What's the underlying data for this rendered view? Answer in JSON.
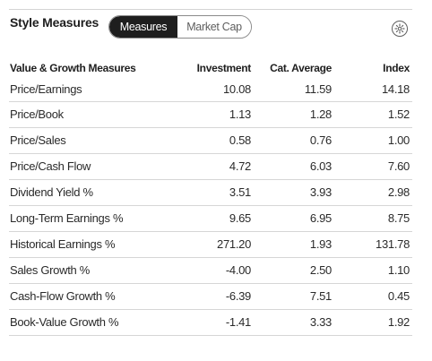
{
  "header": {
    "title": "Style Measures",
    "toggle": {
      "active_label": "Measures",
      "inactive_label": "Market Cap"
    },
    "settings_icon": "gear-icon"
  },
  "table": {
    "columns": [
      "Value & Growth Measures",
      "Investment",
      "Cat. Average",
      "Index"
    ],
    "rows": [
      {
        "label": "Price/Earnings",
        "investment": "10.08",
        "cat_average": "11.59",
        "index": "14.18"
      },
      {
        "label": "Price/Book",
        "investment": "1.13",
        "cat_average": "1.28",
        "index": "1.52"
      },
      {
        "label": "Price/Sales",
        "investment": "0.58",
        "cat_average": "0.76",
        "index": "1.00"
      },
      {
        "label": "Price/Cash Flow",
        "investment": "4.72",
        "cat_average": "6.03",
        "index": "7.60"
      },
      {
        "label": "Dividend Yield %",
        "investment": "3.51",
        "cat_average": "3.93",
        "index": "2.98"
      },
      {
        "label": "Long-Term Earnings %",
        "investment": "9.65",
        "cat_average": "6.95",
        "index": "8.75"
      },
      {
        "label": "Historical Earnings %",
        "investment": "271.20",
        "cat_average": "1.93",
        "index": "131.78"
      },
      {
        "label": "Sales Growth %",
        "investment": "-4.00",
        "cat_average": "2.50",
        "index": "1.10"
      },
      {
        "label": "Cash-Flow Growth %",
        "investment": "-6.39",
        "cat_average": "7.51",
        "index": "0.45"
      },
      {
        "label": "Book-Value Growth %",
        "investment": "-1.41",
        "cat_average": "3.33",
        "index": "1.92"
      }
    ]
  }
}
